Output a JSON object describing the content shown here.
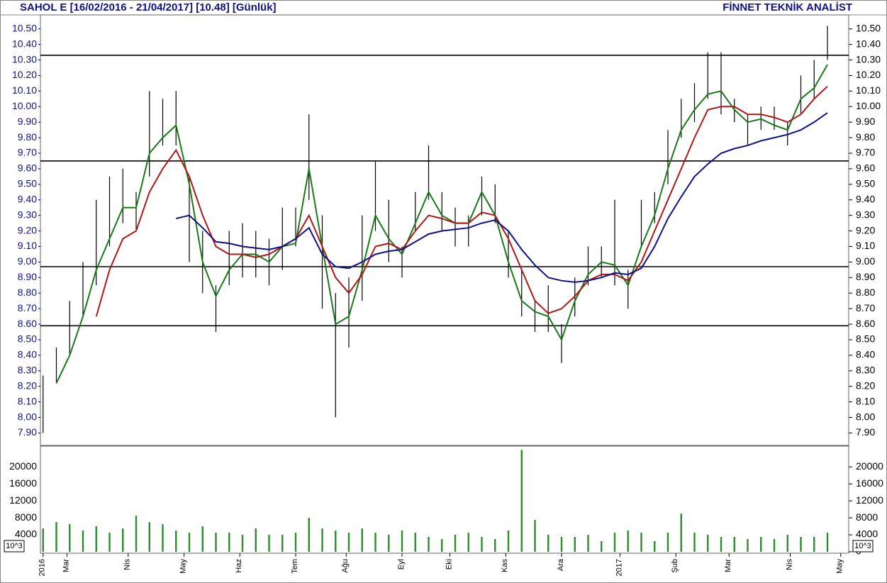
{
  "chart_data": [
    {
      "type": "hilo",
      "title": "SAHOL E  [16/02/2016 - 21/04/2017]  [10.48]  [Günlük]",
      "source": "FİNNET TEKNİK ANALİST",
      "x": [
        0,
        5,
        10,
        15,
        20,
        25,
        30,
        35,
        40,
        45,
        50,
        55,
        60,
        65,
        70,
        75,
        80,
        85,
        90,
        95,
        100,
        105,
        110,
        115,
        120,
        125,
        130,
        135,
        140,
        145,
        150,
        155,
        160,
        165,
        170,
        175,
        180,
        185,
        190,
        195,
        200,
        205,
        210,
        215,
        220,
        225,
        230,
        235,
        240,
        245,
        250,
        255,
        260,
        265,
        270,
        275,
        280,
        285,
        290,
        295
      ],
      "high": [
        8.27,
        8.45,
        8.75,
        9.0,
        9.4,
        9.55,
        9.6,
        9.45,
        10.1,
        10.05,
        10.1,
        9.55,
        9.2,
        8.85,
        9.2,
        9.25,
        9.2,
        9.15,
        9.35,
        9.35,
        9.95,
        9.3,
        8.8,
        8.9,
        9.3,
        9.65,
        9.4,
        9.1,
        9.45,
        9.75,
        9.45,
        9.35,
        9.3,
        9.55,
        9.5,
        9.2,
        8.95,
        8.75,
        8.85,
        8.6,
        8.9,
        9.1,
        9.1,
        9.4,
        8.95,
        9.4,
        9.45,
        9.85,
        10.05,
        10.15,
        10.35,
        10.35,
        10.05,
        9.95,
        10.0,
        10.0,
        9.9,
        10.2,
        10.3,
        10.52
      ],
      "low": [
        7.9,
        8.22,
        8.4,
        8.65,
        8.85,
        9.1,
        9.25,
        9.2,
        9.55,
        9.75,
        9.75,
        9.0,
        8.8,
        8.55,
        8.85,
        8.9,
        8.9,
        8.85,
        8.95,
        9.1,
        9.4,
        8.7,
        8.0,
        8.45,
        8.75,
        9.2,
        9.0,
        8.9,
        9.2,
        9.4,
        9.2,
        9.1,
        9.1,
        9.3,
        9.25,
        8.9,
        8.65,
        8.55,
        8.55,
        8.35,
        8.65,
        8.85,
        8.9,
        8.85,
        8.7,
        9.1,
        9.25,
        9.5,
        9.8,
        9.9,
        10.05,
        9.95,
        9.9,
        9.75,
        9.85,
        9.85,
        9.75,
        9.95,
        10.05,
        10.3
      ],
      "bar_color": "#000000",
      "series": [
        {
          "color": "#1a7a1a",
          "values": [
            null,
            8.22,
            8.4,
            8.65,
            8.95,
            9.15,
            9.35,
            9.35,
            9.7,
            9.8,
            9.88,
            9.5,
            9.0,
            8.78,
            8.95,
            9.05,
            9.05,
            9.0,
            9.1,
            9.12,
            9.6,
            9.1,
            8.6,
            8.65,
            8.95,
            9.3,
            9.15,
            9.05,
            9.25,
            9.45,
            9.3,
            9.25,
            9.25,
            9.45,
            9.3,
            9.0,
            8.75,
            8.68,
            8.65,
            8.5,
            8.75,
            8.92,
            9.0,
            8.98,
            8.85,
            9.1,
            9.3,
            9.6,
            9.85,
            9.98,
            10.08,
            10.1,
            9.98,
            9.9,
            9.92,
            9.88,
            9.85,
            10.05,
            10.12,
            10.27
          ]
        },
        {
          "color": "#b01818",
          "values": [
            null,
            null,
            null,
            null,
            8.65,
            8.95,
            9.15,
            9.2,
            9.45,
            9.6,
            9.72,
            9.55,
            9.3,
            9.1,
            9.05,
            9.05,
            9.03,
            9.05,
            9.1,
            9.15,
            9.3,
            9.1,
            8.9,
            8.8,
            8.92,
            9.1,
            9.12,
            9.08,
            9.2,
            9.3,
            9.28,
            9.25,
            9.25,
            9.32,
            9.3,
            9.15,
            8.95,
            8.75,
            8.67,
            8.7,
            8.78,
            8.88,
            8.92,
            8.92,
            8.88,
            9.0,
            9.2,
            9.4,
            9.6,
            9.8,
            9.98,
            10.0,
            10.0,
            9.95,
            9.95,
            9.93,
            9.9,
            9.95,
            10.05,
            10.13
          ]
        },
        {
          "color": "#10108a",
          "values": [
            null,
            null,
            null,
            null,
            null,
            null,
            null,
            null,
            null,
            null,
            9.28,
            9.3,
            9.22,
            9.13,
            9.12,
            9.1,
            9.09,
            9.08,
            9.1,
            9.15,
            9.22,
            9.05,
            8.97,
            8.96,
            9.0,
            9.05,
            9.07,
            9.08,
            9.13,
            9.18,
            9.2,
            9.21,
            9.22,
            9.25,
            9.27,
            9.2,
            9.08,
            8.98,
            8.9,
            8.88,
            8.87,
            8.88,
            8.9,
            8.93,
            8.92,
            8.96,
            9.1,
            9.28,
            9.42,
            9.55,
            9.63,
            9.7,
            9.73,
            9.75,
            9.78,
            9.8,
            9.82,
            9.85,
            9.9,
            9.96
          ]
        }
      ],
      "hlines": [
        10.33,
        9.65,
        8.97,
        8.59
      ],
      "xlim": [
        -1,
        303
      ],
      "ylim": [
        7.82,
        10.59
      ],
      "yticks": [
        {
          "value": 7.9,
          "label": "7.90"
        },
        {
          "value": 8.0,
          "label": "8.00"
        },
        {
          "value": 8.1,
          "label": "8.10"
        },
        {
          "value": 8.2,
          "label": "8.20"
        },
        {
          "value": 8.3,
          "label": "8.30"
        },
        {
          "value": 8.4,
          "label": "8.40"
        },
        {
          "value": 8.5,
          "label": "8.50"
        },
        {
          "value": 8.6,
          "label": "8.60"
        },
        {
          "value": 8.7,
          "label": "8.70"
        },
        {
          "value": 8.8,
          "label": "8.80"
        },
        {
          "value": 8.9,
          "label": "8.90"
        },
        {
          "value": 9.0,
          "label": "9.00"
        },
        {
          "value": 9.1,
          "label": "9.10"
        },
        {
          "value": 9.2,
          "label": "9.20"
        },
        {
          "value": 9.3,
          "label": "9.30"
        },
        {
          "value": 9.4,
          "label": "9.40"
        },
        {
          "value": 9.5,
          "label": "9.50"
        },
        {
          "value": 9.6,
          "label": "9.60"
        },
        {
          "value": 9.7,
          "label": "9.70"
        },
        {
          "value": 9.8,
          "label": "9.80"
        },
        {
          "value": 9.9,
          "label": "9.90"
        },
        {
          "value": 10.0,
          "label": "10.00"
        },
        {
          "value": 10.1,
          "label": "10.10"
        },
        {
          "value": 10.2,
          "label": "10.20"
        },
        {
          "value": 10.3,
          "label": "10.30"
        },
        {
          "value": 10.4,
          "label": "10.40"
        },
        {
          "value": 10.5,
          "label": "10.50"
        }
      ]
    },
    {
      "type": "bar",
      "x": [
        0,
        5,
        10,
        15,
        20,
        25,
        30,
        35,
        40,
        45,
        50,
        55,
        60,
        65,
        70,
        75,
        80,
        85,
        90,
        95,
        100,
        105,
        110,
        115,
        120,
        125,
        130,
        135,
        140,
        145,
        150,
        155,
        160,
        165,
        170,
        175,
        180,
        185,
        190,
        195,
        200,
        205,
        210,
        215,
        220,
        225,
        230,
        235,
        240,
        245,
        250,
        255,
        260,
        265,
        270,
        275,
        280,
        285,
        290,
        295
      ],
      "values": [
        5500,
        7000,
        6500,
        5000,
        6000,
        4500,
        5500,
        8500,
        7000,
        6500,
        5000,
        4500,
        6000,
        4500,
        4500,
        4000,
        5500,
        4000,
        4000,
        4500,
        8000,
        5500,
        5000,
        4500,
        5500,
        4500,
        4000,
        5000,
        4500,
        3500,
        3000,
        4000,
        4500,
        3500,
        3000,
        5000,
        24000,
        7500,
        4000,
        3500,
        3500,
        4000,
        2500,
        4500,
        5000,
        4500,
        2500,
        4500,
        9000,
        4500,
        4000,
        3500,
        3500,
        3000,
        3500,
        3000,
        4000,
        3500,
        3500,
        4500
      ],
      "color": "#2e8b2e",
      "unit_label": "10^3",
      "xlim": [
        -1,
        303
      ],
      "ylim": [
        -340,
        24900
      ],
      "yticks": [
        0,
        4000,
        8000,
        12000,
        16000,
        20000
      ],
      "xticks": [
        {
          "value": 0,
          "label": "2016"
        },
        {
          "value": 9,
          "label": "Mar"
        },
        {
          "value": 32,
          "label": "Nis"
        },
        {
          "value": 53,
          "label": "May"
        },
        {
          "value": 74,
          "label": "Haz"
        },
        {
          "value": 95,
          "label": "Tem"
        },
        {
          "value": 114,
          "label": "Ağu"
        },
        {
          "value": 135,
          "label": "Eyl"
        },
        {
          "value": 153,
          "label": "Eki"
        },
        {
          "value": 174,
          "label": "Kas"
        },
        {
          "value": 195,
          "label": "Ara"
        },
        {
          "value": 217,
          "label": "2017"
        },
        {
          "value": 238,
          "label": "Şub"
        },
        {
          "value": 258,
          "label": "Mar"
        },
        {
          "value": 281,
          "label": "Nis"
        },
        {
          "value": 300,
          "label": "May"
        }
      ]
    }
  ]
}
